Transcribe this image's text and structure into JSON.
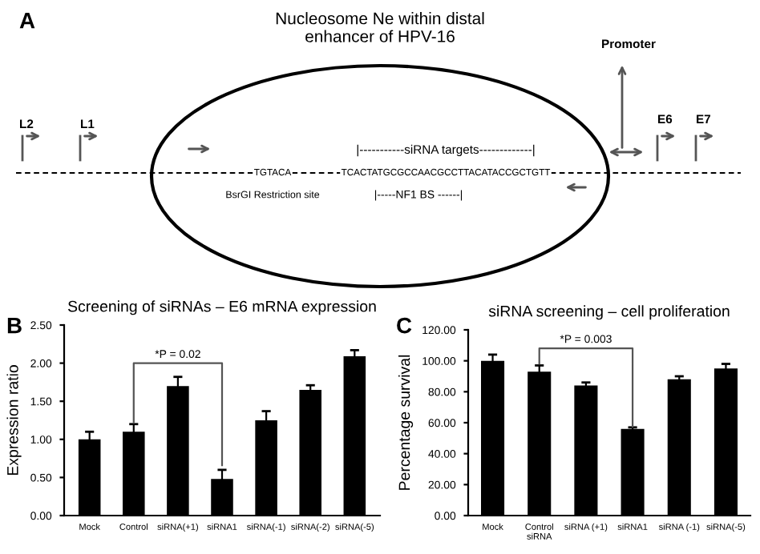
{
  "chart_data": [
    {
      "type": "other",
      "title": "Nucleosome Ne within distal\nenhancer of HPV-16",
      "annotations": [
        "A",
        "Promoter",
        "L2",
        "L1",
        "E6",
        "E7",
        "|-----------siRNA targets-------------|",
        "TGTACA",
        "TCACTATGCGCCAACGCCTTACATACCGCTGTT",
        "BsrGI Restriction site",
        "|-----NF1 BS ------|"
      ]
    },
    {
      "type": "bar",
      "title": "Screening of siRNAs – E6 mRNA expression",
      "ylabel": "Expression ratio",
      "categories": [
        "Mock",
        "Control",
        "siRNA(+1)",
        "siRNA1",
        "siRNA(-1)",
        "siRNA(-2)",
        "siRNA(-5)"
      ],
      "values": [
        1.0,
        1.1,
        1.7,
        0.48,
        1.25,
        1.65,
        2.09
      ],
      "errors": [
        0.1,
        0.1,
        0.12,
        0.12,
        0.12,
        0.06,
        0.08
      ],
      "color": "#000000",
      "ylim": [
        0,
        2.5
      ],
      "yticks": [
        {
          "value": 0,
          "label": "0.00"
        },
        {
          "value": 0.5,
          "label": "0.50"
        },
        {
          "value": 1,
          "label": "1.00"
        },
        {
          "value": 1.5,
          "label": "1.50"
        },
        {
          "value": 2,
          "label": "2.00"
        },
        {
          "value": 2.5,
          "label": "2.50"
        }
      ],
      "annotations": [
        "B",
        "*P = 0.02"
      ]
    },
    {
      "type": "bar",
      "title": "siRNA screening – cell proliferation",
      "ylabel": "Percentage survival",
      "categories": [
        "Mock",
        "Control\nsiRNA",
        "siRNA (+1)",
        "siRNA1",
        "siRNA (-1)",
        "siRNA(-5)"
      ],
      "values": [
        100,
        93,
        84,
        56,
        88,
        95
      ],
      "errors": [
        4,
        4,
        2,
        1,
        2,
        3
      ],
      "color": "#000000",
      "ylim": [
        0,
        120
      ],
      "yticks": [
        {
          "value": 0,
          "label": "0.00"
        },
        {
          "value": 20,
          "label": "20.00"
        },
        {
          "value": 40,
          "label": "40.00"
        },
        {
          "value": 60,
          "label": "60.00"
        },
        {
          "value": 80,
          "label": "80.00"
        },
        {
          "value": 100,
          "label": "100.00"
        },
        {
          "value": 120,
          "label": "120.00"
        }
      ],
      "annotations": [
        "C",
        "*P = 0.003"
      ]
    }
  ]
}
